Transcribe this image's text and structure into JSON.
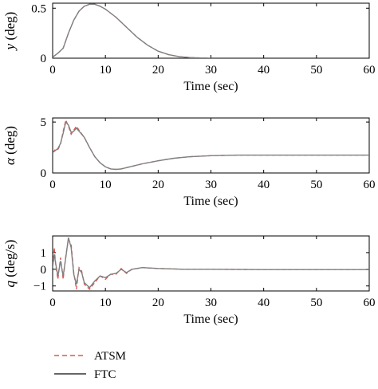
{
  "colors": {
    "atsm": "#e0554f",
    "ftc": "#808080",
    "axis": "#000000"
  },
  "legend": {
    "placement": "bottom-left",
    "entries": [
      {
        "label": "ATSM",
        "style": "dashed"
      },
      {
        "label": "FTC",
        "style": "solid"
      }
    ]
  },
  "chart_data": [
    {
      "type": "line",
      "title": "",
      "xlabel": "Time (sec)",
      "ylabel": {
        "symbol": "y",
        "unit": "(deg)"
      },
      "xlim": [
        0,
        60
      ],
      "ylim": [
        0,
        0.55
      ],
      "xticks": [
        0,
        10,
        20,
        30,
        40,
        50,
        60
      ],
      "yticks": [
        0,
        0.5
      ],
      "ytick_labels": [
        "0",
        "0.5"
      ],
      "series": [
        {
          "name": "ATSM",
          "x": [
            0,
            1,
            2,
            3,
            4,
            5,
            6,
            7,
            8,
            9,
            10,
            12,
            14,
            16,
            18,
            20,
            22,
            24,
            26,
            28,
            30
          ],
          "y": [
            0.01,
            0.05,
            0.1,
            0.25,
            0.38,
            0.47,
            0.52,
            0.54,
            0.54,
            0.52,
            0.49,
            0.41,
            0.31,
            0.21,
            0.13,
            0.07,
            0.035,
            0.015,
            0.006,
            0.002,
            0
          ]
        },
        {
          "name": "FTC",
          "x": [
            0,
            1,
            2,
            3,
            4,
            5,
            6,
            7,
            8,
            9,
            10,
            12,
            14,
            16,
            18,
            20,
            22,
            24,
            26,
            28,
            30
          ],
          "y": [
            0.01,
            0.05,
            0.1,
            0.25,
            0.38,
            0.47,
            0.52,
            0.54,
            0.54,
            0.52,
            0.49,
            0.41,
            0.31,
            0.21,
            0.13,
            0.07,
            0.035,
            0.015,
            0.006,
            0.002,
            0
          ]
        }
      ]
    },
    {
      "type": "line",
      "title": "",
      "xlabel": "Time (sec)",
      "ylabel": {
        "symbol": "α",
        "unit": "(deg)"
      },
      "xlim": [
        0,
        60
      ],
      "ylim": [
        0,
        5.4
      ],
      "xticks": [
        0,
        10,
        20,
        30,
        40,
        50,
        60
      ],
      "yticks": [
        0,
        5
      ],
      "ytick_labels": [
        "0",
        "5"
      ],
      "series": [
        {
          "name": "ATSM",
          "x": [
            0,
            0.5,
            1,
            1.5,
            2,
            2.5,
            3,
            3.5,
            4,
            4.5,
            5,
            6,
            7,
            8,
            9,
            10,
            11,
            12,
            13,
            15,
            17,
            20,
            23,
            26,
            30,
            35,
            40,
            50,
            60
          ],
          "y": [
            2.0,
            2.3,
            2.3,
            2.8,
            4.1,
            5.2,
            4.6,
            3.8,
            4.2,
            4.6,
            4.2,
            3.5,
            2.5,
            1.6,
            1.0,
            0.6,
            0.4,
            0.35,
            0.4,
            0.65,
            0.9,
            1.2,
            1.45,
            1.6,
            1.7,
            1.75,
            1.75,
            1.75,
            1.75
          ]
        },
        {
          "name": "FTC",
          "x": [
            0,
            0.5,
            1,
            1.5,
            2,
            2.5,
            3,
            3.5,
            4,
            4.5,
            5,
            6,
            7,
            8,
            9,
            10,
            11,
            12,
            13,
            15,
            17,
            20,
            23,
            26,
            30,
            35,
            40,
            50,
            60
          ],
          "y": [
            2.0,
            2.2,
            2.4,
            2.9,
            3.9,
            5.0,
            4.7,
            4.0,
            4.1,
            4.4,
            4.1,
            3.5,
            2.5,
            1.6,
            1.0,
            0.6,
            0.4,
            0.35,
            0.4,
            0.65,
            0.9,
            1.2,
            1.45,
            1.6,
            1.7,
            1.75,
            1.75,
            1.75,
            1.75
          ]
        }
      ]
    },
    {
      "type": "line",
      "title": "",
      "xlabel": "Time (sec)",
      "ylabel": {
        "symbol": "q",
        "unit": "(deg/s)"
      },
      "xlim": [
        0,
        60
      ],
      "ylim": [
        -1.3,
        2.0
      ],
      "xticks": [
        0,
        10,
        20,
        30,
        40,
        50,
        60
      ],
      "yticks": [
        -1,
        0,
        1
      ],
      "ytick_labels": [
        "−1",
        "0",
        "1"
      ],
      "series": [
        {
          "name": "ATSM",
          "x": [
            0,
            0.3,
            0.6,
            1,
            1.5,
            2,
            2.5,
            3,
            3.5,
            4,
            4.5,
            5,
            5.5,
            6,
            7,
            8,
            9,
            10,
            11,
            12,
            13,
            14,
            15,
            17,
            20,
            25,
            30,
            40,
            50,
            60
          ],
          "y": [
            0.2,
            1.3,
            0.2,
            -0.6,
            0.7,
            -0.6,
            0.8,
            1.8,
            1.5,
            -0.2,
            -1.2,
            0.1,
            -0.1,
            -0.9,
            -1.2,
            -0.8,
            -0.4,
            -0.6,
            -0.3,
            -0.3,
            0.05,
            -0.25,
            0,
            0.1,
            0.05,
            0,
            0,
            -0.02,
            -0.02,
            -0.02
          ]
        },
        {
          "name": "FTC",
          "x": [
            0,
            0.3,
            0.6,
            1,
            1.5,
            2,
            2.5,
            3,
            3.5,
            4,
            4.5,
            5,
            5.5,
            6,
            7,
            8,
            9,
            10,
            11,
            12,
            13,
            14,
            15,
            17,
            20,
            25,
            30,
            40,
            50,
            60
          ],
          "y": [
            0.1,
            0.9,
            0.3,
            -0.4,
            0.5,
            -0.4,
            0.7,
            1.9,
            1.3,
            -0.3,
            -0.9,
            0,
            -0.2,
            -0.8,
            -1.1,
            -0.7,
            -0.4,
            -0.5,
            -0.3,
            -0.25,
            0,
            -0.2,
            0,
            0.1,
            0.05,
            0,
            0,
            -0.02,
            -0.02,
            -0.02
          ]
        }
      ]
    }
  ]
}
